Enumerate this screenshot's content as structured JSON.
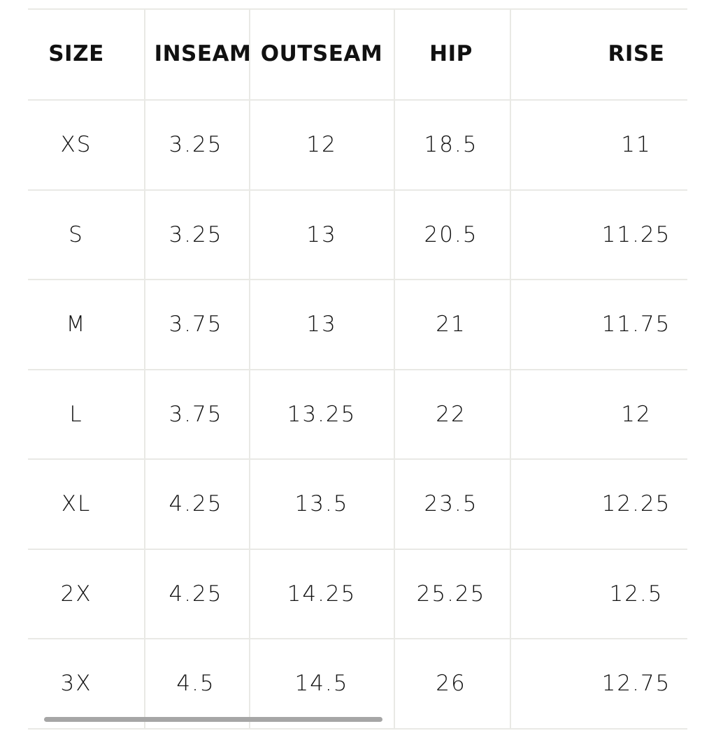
{
  "table": {
    "header": [
      "SIZE",
      "INSEAM",
      "OUTSEAM",
      "HIP",
      "RISE"
    ],
    "rows": [
      [
        "XS",
        "3.25",
        "12",
        "18.5",
        "11"
      ],
      [
        "S",
        "3.25",
        "13",
        "20.5",
        "11.25"
      ],
      [
        "M",
        "3.75",
        "13",
        "21",
        "11.75"
      ],
      [
        "L",
        "3.75",
        "13.25",
        "22",
        "12"
      ],
      [
        "XL",
        "4.25",
        "13.5",
        "23.5",
        "12.25"
      ],
      [
        "2X",
        "4.25",
        "14.25",
        "25.25",
        "12.5"
      ],
      [
        "3X",
        "4.5",
        "14.5",
        "26",
        "12.75"
      ]
    ]
  }
}
